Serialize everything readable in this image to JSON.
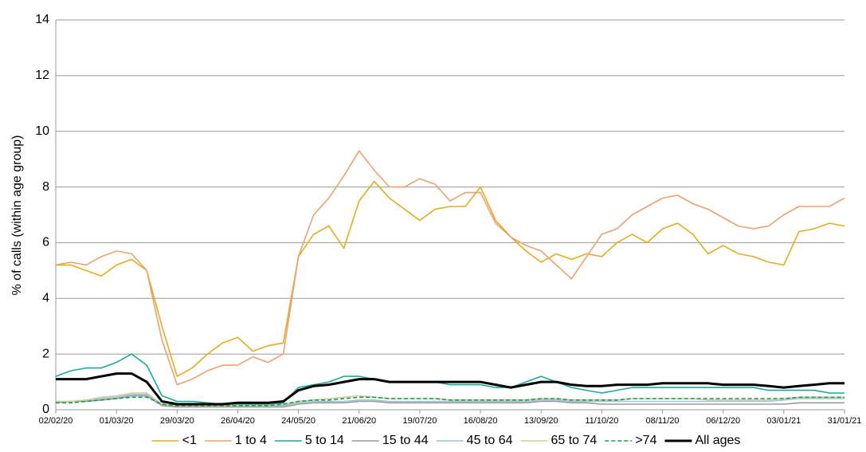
{
  "chart_data": {
    "type": "line",
    "y_label": "% of calls (within age group)",
    "x": [
      "02/02/20",
      "09/02/20",
      "16/02/20",
      "23/02/20",
      "01/03/20",
      "08/03/20",
      "15/03/20",
      "22/03/20",
      "29/03/20",
      "05/04/20",
      "12/04/20",
      "19/04/20",
      "26/04/20",
      "03/05/20",
      "10/05/20",
      "17/05/20",
      "24/05/20",
      "31/05/20",
      "07/06/20",
      "14/06/20",
      "21/06/20",
      "28/06/20",
      "05/07/20",
      "12/07/20",
      "19/07/20",
      "26/07/20",
      "02/08/20",
      "09/08/20",
      "16/08/20",
      "23/08/20",
      "30/08/20",
      "06/09/20",
      "13/09/20",
      "20/09/20",
      "27/09/20",
      "04/10/20",
      "11/10/20",
      "18/10/20",
      "25/10/20",
      "01/11/20",
      "08/11/20",
      "15/11/20",
      "22/11/20",
      "29/11/20",
      "06/12/20",
      "13/12/20",
      "20/12/20",
      "27/12/20",
      "03/01/21",
      "10/01/21",
      "17/01/21",
      "24/01/21",
      "31/01/21"
    ],
    "xlim": [
      "02/02/20",
      "31/01/21"
    ],
    "xticks": [
      "02/02/20",
      "01/03/20",
      "29/03/20",
      "26/04/20",
      "24/05/20",
      "21/06/20",
      "19/07/20",
      "16/08/20",
      "13/09/20",
      "11/10/20",
      "08/11/20",
      "06/12/20",
      "03/01/21",
      "31/01/21"
    ],
    "ylim": [
      0,
      14
    ],
    "yticks": [
      0,
      2,
      4,
      6,
      8,
      10,
      12,
      14
    ],
    "grid": true,
    "legend": "bottom",
    "series": [
      {
        "name": "<1",
        "color": "#e6ac1e",
        "values": [
          5.2,
          5.2,
          5.0,
          4.8,
          5.2,
          5.4,
          5.0,
          3.0,
          1.2,
          1.5,
          2.0,
          2.4,
          2.6,
          2.1,
          2.3,
          2.4,
          5.5,
          6.3,
          6.6,
          5.8,
          7.5,
          8.2,
          7.6,
          7.2,
          6.8,
          7.2,
          7.3,
          7.3,
          8.0,
          6.8,
          6.2,
          5.7,
          5.3,
          5.6,
          5.4,
          5.6,
          5.5,
          6.0,
          6.3,
          6.0,
          6.5,
          6.7,
          6.3,
          5.6,
          5.9,
          5.6,
          5.5,
          5.3,
          5.2,
          6.4,
          6.5,
          6.7,
          6.6
        ]
      },
      {
        "name": "1 to 4",
        "color": "#f0a070",
        "values": [
          5.2,
          5.3,
          5.2,
          5.5,
          5.7,
          5.6,
          5.0,
          2.5,
          0.9,
          1.1,
          1.4,
          1.6,
          1.6,
          1.9,
          1.7,
          2.0,
          5.5,
          7.0,
          7.6,
          8.4,
          9.3,
          8.6,
          8.0,
          8.0,
          8.3,
          8.1,
          7.5,
          7.8,
          7.8,
          6.7,
          6.2,
          5.9,
          5.7,
          5.2,
          4.7,
          5.5,
          6.3,
          6.5,
          7.0,
          7.3,
          7.6,
          7.7,
          7.4,
          7.2,
          6.9,
          6.6,
          6.5,
          6.6,
          7.0,
          7.3,
          7.3,
          7.3,
          7.6
        ]
      },
      {
        "name": "5 to 14",
        "color": "#1aa89a",
        "values": [
          1.2,
          1.4,
          1.5,
          1.5,
          1.7,
          2.0,
          1.6,
          0.5,
          0.3,
          0.3,
          0.25,
          0.2,
          0.2,
          0.2,
          0.2,
          0.25,
          0.8,
          0.9,
          1.0,
          1.2,
          1.2,
          1.1,
          1.0,
          1.0,
          1.0,
          1.0,
          0.9,
          0.9,
          0.9,
          0.8,
          0.8,
          1.0,
          1.2,
          1.0,
          0.8,
          0.7,
          0.6,
          0.7,
          0.8,
          0.8,
          0.8,
          0.8,
          0.8,
          0.8,
          0.8,
          0.8,
          0.8,
          0.7,
          0.7,
          0.7,
          0.7,
          0.6,
          0.6
        ]
      },
      {
        "name": "15 to 44",
        "color": "#9a9a9a",
        "values": [
          0.25,
          0.3,
          0.3,
          0.35,
          0.4,
          0.5,
          0.5,
          0.15,
          0.1,
          0.1,
          0.1,
          0.1,
          0.1,
          0.1,
          0.1,
          0.1,
          0.2,
          0.25,
          0.25,
          0.25,
          0.3,
          0.3,
          0.25,
          0.25,
          0.25,
          0.25,
          0.25,
          0.25,
          0.25,
          0.25,
          0.25,
          0.25,
          0.3,
          0.3,
          0.25,
          0.25,
          0.2,
          0.2,
          0.2,
          0.2,
          0.2,
          0.2,
          0.2,
          0.2,
          0.2,
          0.2,
          0.2,
          0.2,
          0.2,
          0.25,
          0.25,
          0.25,
          0.25
        ]
      },
      {
        "name": "45 to 64",
        "color": "#9dc3d8",
        "values": [
          0.3,
          0.3,
          0.35,
          0.4,
          0.45,
          0.55,
          0.55,
          0.2,
          0.15,
          0.15,
          0.15,
          0.15,
          0.15,
          0.15,
          0.15,
          0.15,
          0.25,
          0.3,
          0.3,
          0.3,
          0.35,
          0.35,
          0.3,
          0.3,
          0.3,
          0.3,
          0.3,
          0.3,
          0.3,
          0.3,
          0.3,
          0.3,
          0.35,
          0.35,
          0.3,
          0.3,
          0.3,
          0.3,
          0.3,
          0.3,
          0.3,
          0.3,
          0.3,
          0.3,
          0.3,
          0.3,
          0.3,
          0.3,
          0.35,
          0.4,
          0.4,
          0.4,
          0.4
        ]
      },
      {
        "name": "65 to 74",
        "color": "#d4cc9c",
        "values": [
          0.3,
          0.3,
          0.35,
          0.45,
          0.5,
          0.6,
          0.6,
          0.2,
          0.15,
          0.15,
          0.15,
          0.15,
          0.15,
          0.15,
          0.15,
          0.2,
          0.3,
          0.35,
          0.4,
          0.45,
          0.5,
          0.45,
          0.4,
          0.4,
          0.4,
          0.4,
          0.35,
          0.35,
          0.35,
          0.35,
          0.35,
          0.35,
          0.4,
          0.4,
          0.35,
          0.35,
          0.35,
          0.35,
          0.4,
          0.4,
          0.4,
          0.4,
          0.4,
          0.35,
          0.35,
          0.35,
          0.35,
          0.35,
          0.4,
          0.45,
          0.45,
          0.45,
          0.45
        ]
      },
      {
        "name": ">74",
        "color": "#1a9a50",
        "dashed": true,
        "values": [
          0.25,
          0.25,
          0.3,
          0.35,
          0.4,
          0.45,
          0.45,
          0.2,
          0.15,
          0.15,
          0.15,
          0.15,
          0.15,
          0.15,
          0.15,
          0.2,
          0.3,
          0.35,
          0.35,
          0.4,
          0.45,
          0.45,
          0.4,
          0.4,
          0.4,
          0.4,
          0.35,
          0.35,
          0.35,
          0.35,
          0.35,
          0.35,
          0.4,
          0.4,
          0.35,
          0.35,
          0.35,
          0.35,
          0.4,
          0.4,
          0.4,
          0.4,
          0.4,
          0.4,
          0.4,
          0.4,
          0.4,
          0.4,
          0.4,
          0.45,
          0.45,
          0.45,
          0.45
        ]
      },
      {
        "name": "All ages",
        "color": "#000000",
        "width": 3,
        "values": [
          1.1,
          1.1,
          1.1,
          1.2,
          1.3,
          1.3,
          1.0,
          0.3,
          0.2,
          0.2,
          0.2,
          0.2,
          0.25,
          0.25,
          0.25,
          0.3,
          0.7,
          0.85,
          0.9,
          1.0,
          1.1,
          1.1,
          1.0,
          1.0,
          1.0,
          1.0,
          1.0,
          1.0,
          1.0,
          0.9,
          0.8,
          0.9,
          1.0,
          1.0,
          0.9,
          0.85,
          0.85,
          0.9,
          0.9,
          0.9,
          0.95,
          0.95,
          0.95,
          0.95,
          0.9,
          0.9,
          0.9,
          0.85,
          0.8,
          0.85,
          0.9,
          0.95,
          0.95
        ]
      }
    ]
  }
}
